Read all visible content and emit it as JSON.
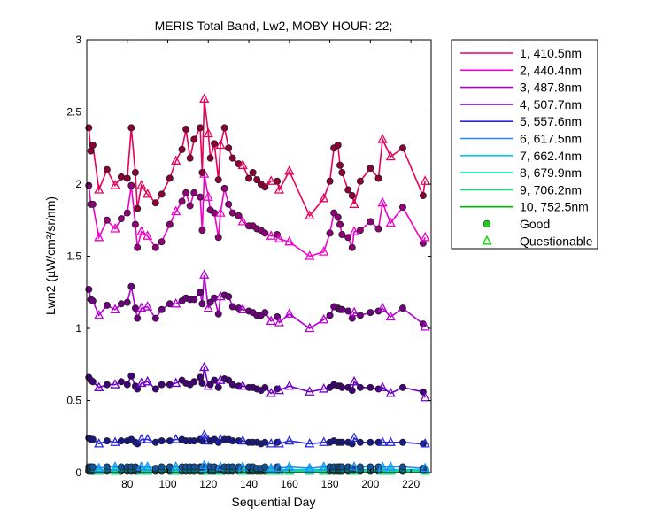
{
  "chart_data": {
    "type": "line",
    "title": "MERIS Total Band, Lw2, MOBY HOUR: 22;",
    "xlabel": "Sequential Day",
    "ylabel": "Lwn2 (µW/cm²/sr/nm)",
    "xlim": [
      60,
      230
    ],
    "ylim": [
      0,
      3
    ],
    "xticks": [
      "80",
      "100",
      "120",
      "140",
      "160",
      "180",
      "200",
      "220"
    ],
    "yticks": [
      "0",
      "0.5",
      "1",
      "1.5",
      "2",
      "2.5",
      "3"
    ],
    "grid": false,
    "legend_position": "outside-right",
    "x": [
      61,
      62,
      63,
      66,
      70,
      74,
      77,
      80,
      82,
      84,
      85,
      87,
      90,
      94,
      97,
      101,
      104,
      107,
      109,
      111,
      113,
      116,
      117,
      118,
      120,
      121,
      123,
      125,
      126,
      128,
      130,
      132,
      135,
      137,
      140,
      142,
      144,
      146,
      148,
      151,
      154,
      155,
      160,
      170,
      177,
      180,
      182,
      184,
      185,
      186,
      189,
      191,
      192,
      195,
      200,
      204,
      206,
      210,
      216,
      226,
      227
    ],
    "quality": [
      "G",
      "G",
      "G",
      "Q",
      "G",
      "Q",
      "G",
      "G",
      "G",
      "G",
      "G",
      "Q",
      "Q",
      "G",
      "G",
      "G",
      "Q",
      "G",
      "G",
      "G",
      "G",
      "G",
      "G",
      "Q",
      "Q",
      "G",
      "G",
      "G",
      "Q",
      "G",
      "G",
      "G",
      "G",
      "Q",
      "G",
      "G",
      "G",
      "G",
      "G",
      "Q",
      "G",
      "Q",
      "Q",
      "Q",
      "Q",
      "G",
      "G",
      "G",
      "G",
      "G",
      "G",
      "G",
      "Q",
      "G",
      "G",
      "G",
      "Q",
      "Q",
      "G",
      "G",
      "Q"
    ],
    "series": [
      {
        "name": "1, 410.5nm",
        "color": "#e8005a",
        "values": [
          2.39,
          2.23,
          2.27,
          1.96,
          2.1,
          1.99,
          2.05,
          2.04,
          2.39,
          2.08,
          1.83,
          1.99,
          1.93,
          1.87,
          1.93,
          2.04,
          2.16,
          2.24,
          2.38,
          2.18,
          2.31,
          2.39,
          2.08,
          2.59,
          2.35,
          2.18,
          2.28,
          2.03,
          2.27,
          2.39,
          2.25,
          2.18,
          2.14,
          2.13,
          2.04,
          2.08,
          2.03,
          2.0,
          1.98,
          2.02,
          2.02,
          1.96,
          2.09,
          1.78,
          1.9,
          2.02,
          2.25,
          2.27,
          2.13,
          2.08,
          1.96,
          1.92,
          1.86,
          2.02,
          2.11,
          2.04,
          2.31,
          2.19,
          2.25,
          1.92,
          2.02
        ]
      },
      {
        "name": "2, 440.4nm",
        "color": "#f000c8",
        "values": [
          1.99,
          1.86,
          1.86,
          1.63,
          1.75,
          1.69,
          1.76,
          1.8,
          1.99,
          1.72,
          1.56,
          1.67,
          1.64,
          1.56,
          1.6,
          1.72,
          1.81,
          1.88,
          1.94,
          1.85,
          1.94,
          1.91,
          1.68,
          2.07,
          1.91,
          1.82,
          1.8,
          1.63,
          1.8,
          1.97,
          1.86,
          1.8,
          1.78,
          1.74,
          1.71,
          1.71,
          1.69,
          1.68,
          1.66,
          1.64,
          1.65,
          1.62,
          1.6,
          1.5,
          1.53,
          1.66,
          1.8,
          1.77,
          1.72,
          1.65,
          1.63,
          1.56,
          1.67,
          1.68,
          1.74,
          1.69,
          1.87,
          1.73,
          1.84,
          1.59,
          1.63
        ]
      },
      {
        "name": "3, 487.8nm",
        "color": "#b400d2",
        "values": [
          1.27,
          1.2,
          1.19,
          1.09,
          1.16,
          1.13,
          1.17,
          1.18,
          1.29,
          1.14,
          1.07,
          1.14,
          1.15,
          1.07,
          1.13,
          1.17,
          1.17,
          1.19,
          1.21,
          1.2,
          1.2,
          1.25,
          1.17,
          1.37,
          1.14,
          1.18,
          1.21,
          1.1,
          1.22,
          1.23,
          1.22,
          1.15,
          1.14,
          1.13,
          1.12,
          1.11,
          1.09,
          1.09,
          1.11,
          1.05,
          1.08,
          1.04,
          1.1,
          1.0,
          1.06,
          1.09,
          1.15,
          1.14,
          1.13,
          1.13,
          1.12,
          1.07,
          1.11,
          1.09,
          1.11,
          1.12,
          1.14,
          1.08,
          1.14,
          1.03,
          1.01
        ]
      },
      {
        "name": "4, 507.7nm",
        "color": "#6e00c8",
        "values": [
          0.66,
          0.64,
          0.63,
          0.59,
          0.61,
          0.61,
          0.63,
          0.61,
          0.67,
          0.6,
          0.58,
          0.62,
          0.63,
          0.58,
          0.61,
          0.61,
          0.62,
          0.64,
          0.62,
          0.61,
          0.63,
          0.66,
          0.62,
          0.73,
          0.6,
          0.61,
          0.64,
          0.59,
          0.64,
          0.65,
          0.64,
          0.61,
          0.6,
          0.6,
          0.59,
          0.59,
          0.58,
          0.57,
          0.59,
          0.55,
          0.58,
          0.57,
          0.6,
          0.56,
          0.58,
          0.59,
          0.61,
          0.6,
          0.6,
          0.59,
          0.59,
          0.57,
          0.63,
          0.59,
          0.59,
          0.58,
          0.59,
          0.55,
          0.59,
          0.56,
          0.52
        ]
      },
      {
        "name": "5, 557.6nm",
        "color": "#2828dc",
        "values": [
          0.24,
          0.23,
          0.23,
          0.2,
          0.22,
          0.21,
          0.22,
          0.22,
          0.23,
          0.21,
          0.2,
          0.23,
          0.23,
          0.21,
          0.22,
          0.22,
          0.23,
          0.23,
          0.22,
          0.22,
          0.22,
          0.23,
          0.22,
          0.26,
          0.22,
          0.22,
          0.23,
          0.21,
          0.23,
          0.23,
          0.23,
          0.22,
          0.22,
          0.22,
          0.21,
          0.21,
          0.21,
          0.2,
          0.21,
          0.2,
          0.21,
          0.2,
          0.22,
          0.2,
          0.21,
          0.21,
          0.22,
          0.21,
          0.21,
          0.21,
          0.21,
          0.2,
          0.24,
          0.21,
          0.21,
          0.21,
          0.21,
          0.21,
          0.21,
          0.2,
          0.2
        ]
      },
      {
        "name": "6, 617.5nm",
        "color": "#1e8cff",
        "values": [
          0.04,
          0.04,
          0.04,
          0.03,
          0.04,
          0.04,
          0.04,
          0.04,
          0.04,
          0.04,
          0.03,
          0.04,
          0.04,
          0.03,
          0.04,
          0.04,
          0.04,
          0.04,
          0.04,
          0.04,
          0.04,
          0.04,
          0.04,
          0.05,
          0.04,
          0.04,
          0.04,
          0.03,
          0.04,
          0.04,
          0.04,
          0.04,
          0.04,
          0.04,
          0.04,
          0.04,
          0.03,
          0.03,
          0.04,
          0.03,
          0.04,
          0.03,
          0.04,
          0.03,
          0.04,
          0.04,
          0.04,
          0.04,
          0.04,
          0.04,
          0.04,
          0.03,
          0.04,
          0.04,
          0.04,
          0.04,
          0.04,
          0.04,
          0.04,
          0.03,
          0.03
        ]
      },
      {
        "name": "7, 662.4nm",
        "color": "#00c8e6",
        "values": [
          0.02,
          0.02,
          0.02,
          0.02,
          0.02,
          0.02,
          0.02,
          0.02,
          0.02,
          0.02,
          0.02,
          0.02,
          0.02,
          0.02,
          0.02,
          0.02,
          0.02,
          0.02,
          0.02,
          0.02,
          0.02,
          0.02,
          0.02,
          0.03,
          0.02,
          0.02,
          0.02,
          0.02,
          0.02,
          0.02,
          0.02,
          0.02,
          0.02,
          0.02,
          0.02,
          0.02,
          0.02,
          0.02,
          0.02,
          0.02,
          0.02,
          0.02,
          0.02,
          0.02,
          0.02,
          0.02,
          0.02,
          0.02,
          0.02,
          0.02,
          0.02,
          0.02,
          0.02,
          0.02,
          0.02,
          0.02,
          0.02,
          0.02,
          0.02,
          0.02,
          0.02
        ]
      },
      {
        "name": "8, 679.9nm",
        "color": "#00e6b4",
        "values": [
          0.02,
          0.02,
          0.02,
          0.02,
          0.02,
          0.02,
          0.02,
          0.02,
          0.02,
          0.02,
          0.02,
          0.02,
          0.02,
          0.02,
          0.02,
          0.02,
          0.02,
          0.02,
          0.02,
          0.02,
          0.02,
          0.02,
          0.02,
          0.03,
          0.02,
          0.02,
          0.02,
          0.02,
          0.02,
          0.02,
          0.02,
          0.02,
          0.02,
          0.02,
          0.02,
          0.02,
          0.02,
          0.02,
          0.02,
          0.02,
          0.02,
          0.02,
          0.02,
          0.02,
          0.02,
          0.02,
          0.02,
          0.02,
          0.02,
          0.02,
          0.02,
          0.02,
          0.02,
          0.02,
          0.02,
          0.02,
          0.02,
          0.02,
          0.02,
          0.02,
          0.02
        ]
      },
      {
        "name": "9, 706.2nm",
        "color": "#14dc6e",
        "values": [
          0.01,
          0.01,
          0.01,
          0.01,
          0.01,
          0.01,
          0.01,
          0.01,
          0.01,
          0.01,
          0.01,
          0.01,
          0.01,
          0.01,
          0.01,
          0.01,
          0.01,
          0.01,
          0.01,
          0.01,
          0.01,
          0.01,
          0.01,
          0.02,
          0.01,
          0.01,
          0.01,
          0.01,
          0.01,
          0.01,
          0.01,
          0.01,
          0.01,
          0.01,
          0.01,
          0.01,
          0.01,
          0.01,
          0.01,
          0.01,
          0.01,
          0.01,
          0.01,
          0.01,
          0.01,
          0.01,
          0.01,
          0.01,
          0.01,
          0.01,
          0.01,
          0.01,
          0.01,
          0.01,
          0.01,
          0.01,
          0.01,
          0.01,
          0.01,
          0.01,
          0.01
        ]
      },
      {
        "name": "10, 752.5nm",
        "color": "#00b400",
        "values": [
          0.01,
          0.01,
          0.01,
          0.01,
          0.01,
          0.01,
          0.01,
          0.01,
          0.01,
          0.01,
          0.01,
          0.01,
          0.01,
          0.01,
          0.01,
          0.01,
          0.01,
          0.01,
          0.01,
          0.01,
          0.01,
          0.01,
          0.01,
          0.01,
          0.01,
          0.01,
          0.01,
          0.01,
          0.01,
          0.01,
          0.01,
          0.01,
          0.01,
          0.01,
          0.01,
          0.01,
          0.01,
          0.01,
          0.01,
          0.01,
          0.01,
          0.01,
          0.01,
          0.01,
          0.01,
          0.01,
          0.01,
          0.01,
          0.01,
          0.01,
          0.01,
          0.01,
          0.01,
          0.01,
          0.01,
          0.01,
          0.01,
          0.01,
          0.01,
          0.01,
          0.01
        ]
      }
    ],
    "legend": {
      "good_label": "Good",
      "good_color": "#22cc22",
      "questionable_label": "Questionable",
      "questionable_color": "#00dd00"
    }
  }
}
